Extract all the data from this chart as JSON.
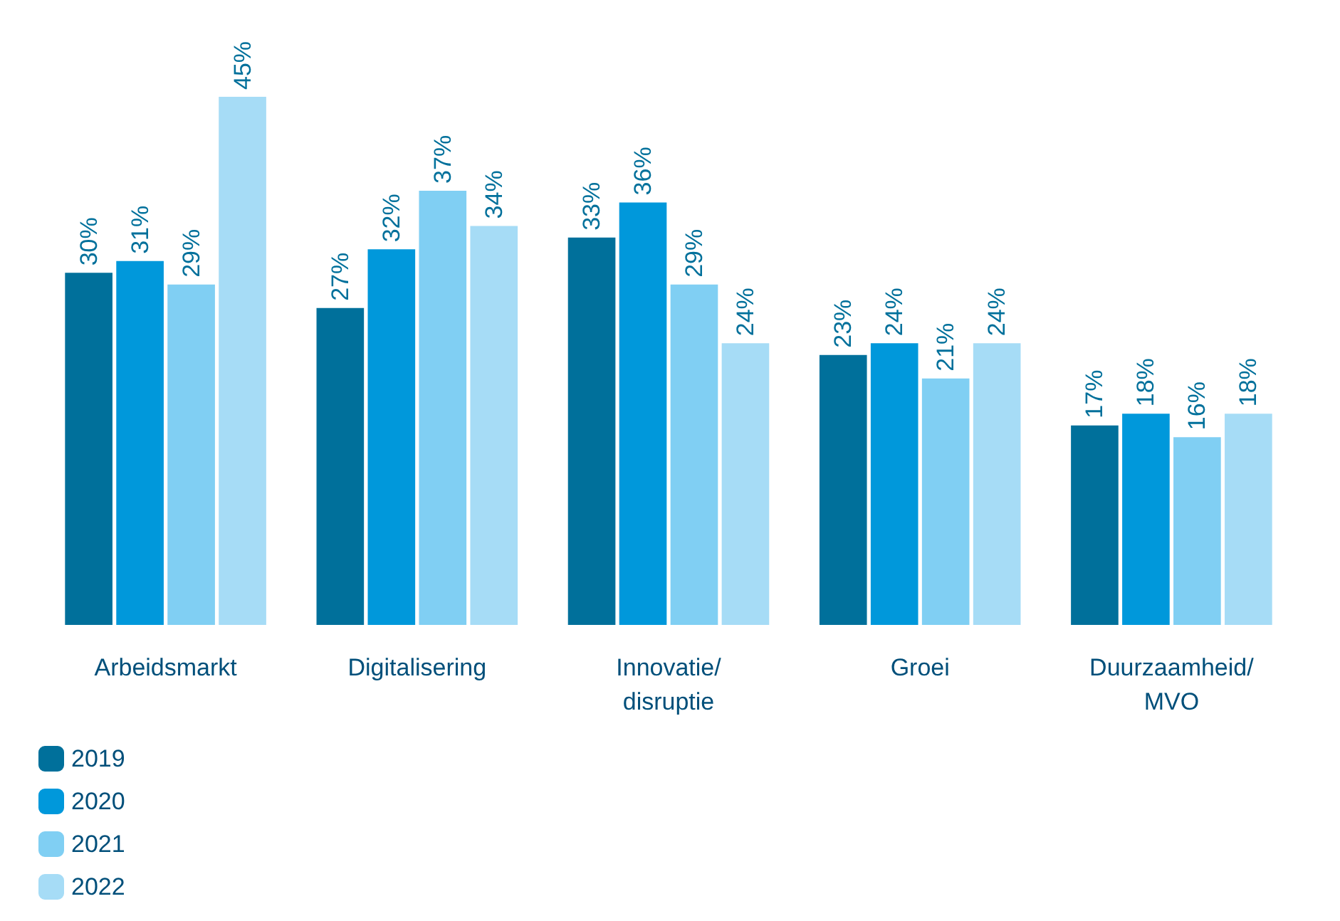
{
  "chart_data": {
    "type": "bar",
    "categories": [
      "Arbeidsmarkt",
      "Digitalisering",
      "Innovatie/disruptie",
      "Groei",
      "Duurzaamheid/MVO"
    ],
    "series": [
      {
        "name": "2019",
        "color": "#00709b",
        "values": [
          30,
          27,
          33,
          23,
          17
        ],
        "value_labels": [
          "30%",
          "27%",
          "33%",
          "23%",
          "17%"
        ]
      },
      {
        "name": "2020",
        "color": "#0098db",
        "values": [
          31,
          32,
          36,
          24,
          18
        ],
        "value_labels": [
          "31%",
          "32%",
          "36%",
          "24%",
          "18%"
        ]
      },
      {
        "name": "2021",
        "color": "#80cff3",
        "values": [
          29,
          37,
          29,
          21,
          16
        ],
        "value_labels": [
          "29%",
          "37%",
          "29%",
          "21%",
          "16%"
        ]
      },
      {
        "name": "2022",
        "color": "#a6dcf6",
        "values": [
          45,
          34,
          24,
          24,
          18
        ],
        "value_labels": [
          "45%",
          "34%",
          "24%",
          "24%",
          "18%"
        ]
      }
    ],
    "ylim": [
      0,
      45
    ],
    "tick_labels": "x",
    "grid": false,
    "legend": "bottom left"
  }
}
